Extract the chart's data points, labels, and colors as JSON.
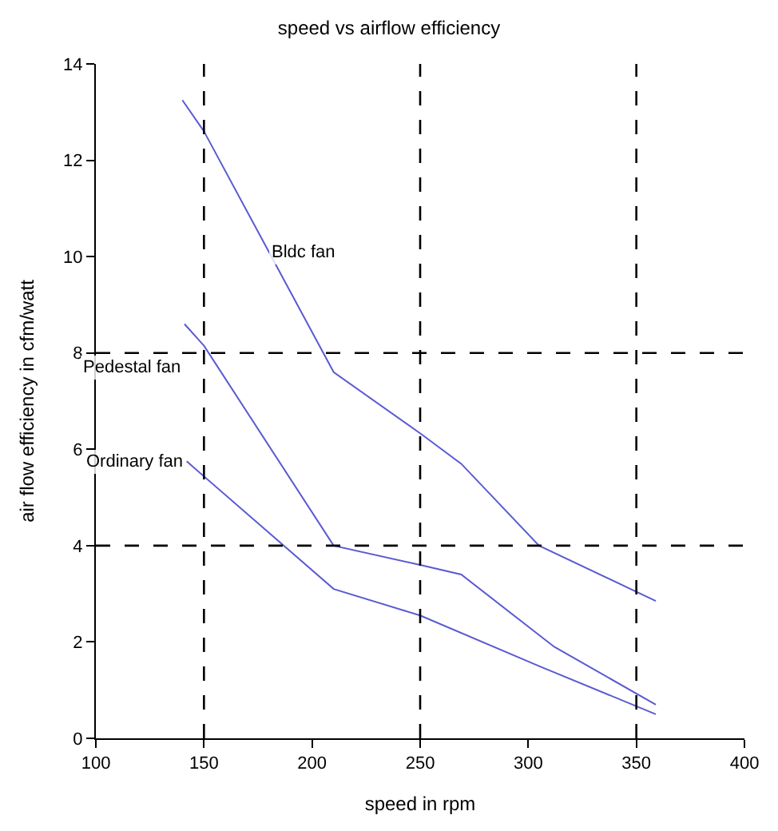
{
  "chart_data": {
    "type": "line",
    "title": "speed vs airflow efficiency",
    "xlabel": "speed in rpm",
    "ylabel": "air flow efficiency in cfm/watt",
    "xlim": [
      100,
      400
    ],
    "xticks": [
      100,
      150,
      200,
      250,
      300,
      350,
      400
    ],
    "ylim": [
      0,
      14
    ],
    "yticks": [
      0,
      2,
      4,
      6,
      8,
      10,
      12,
      14
    ],
    "legend": false,
    "line_style": "solid",
    "series": [
      {
        "name": "Bldc fan",
        "color": "#5a5ad2",
        "x": [
          140,
          150,
          210,
          251,
          269,
          305,
          359
        ],
        "values": [
          13.25,
          12.6,
          7.6,
          6.3,
          5.7,
          4.0,
          2.85
        ]
      },
      {
        "name": "Pedestal fan",
        "color": "#5a5ad2",
        "x": [
          141,
          150,
          210,
          250,
          269,
          312,
          359
        ],
        "values": [
          8.6,
          8.15,
          4.0,
          3.6,
          3.4,
          1.9,
          0.7
        ]
      },
      {
        "name": "Ordinary fan",
        "color": "#5a5ad2",
        "x": [
          142,
          210,
          250,
          305,
          359
        ],
        "values": [
          5.75,
          3.1,
          2.55,
          1.5,
          0.5
        ]
      }
    ],
    "ref_lines": [
      {
        "axis": "x",
        "value": 150,
        "color": "#000000",
        "line_style": "dashed"
      },
      {
        "axis": "x",
        "value": 250,
        "color": "#000000",
        "line_style": "dashed"
      },
      {
        "axis": "x",
        "value": 350,
        "color": "#000000",
        "line_style": "dashed"
      },
      {
        "axis": "y",
        "value": 4,
        "color": "#000000",
        "line_style": "dashed"
      },
      {
        "axis": "y",
        "value": 8,
        "color": "#000000",
        "line_style": "dashed"
      }
    ]
  }
}
